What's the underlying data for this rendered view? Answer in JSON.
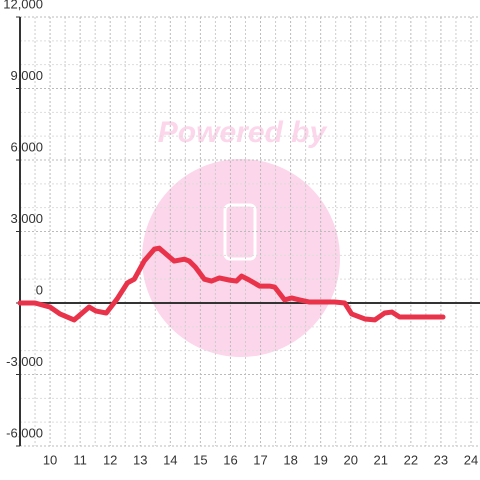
{
  "chart_data": {
    "type": "line",
    "watermark": "Powered by",
    "x": [
      9.0,
      9.5,
      10.0,
      10.33,
      10.8,
      11.3,
      11.53,
      11.87,
      12.23,
      12.57,
      12.8,
      13.13,
      13.47,
      13.63,
      13.97,
      14.13,
      14.47,
      14.63,
      14.83,
      15.13,
      15.37,
      15.63,
      15.97,
      16.2,
      16.37,
      16.63,
      16.97,
      17.3,
      17.47,
      17.8,
      18.03,
      18.3,
      18.63,
      19.47,
      19.8,
      20.03,
      20.47,
      20.8,
      21.13,
      21.37,
      21.63,
      22.3,
      23.07
    ],
    "series": [
      {
        "color": "#e8334a",
        "values": [
          0,
          0,
          -170,
          -460,
          -710,
          -170,
          -340,
          -420,
          170,
          840,
          1000,
          1760,
          2260,
          2300,
          1930,
          1760,
          1840,
          1760,
          1510,
          1000,
          920,
          1050,
          960,
          920,
          1130,
          960,
          710,
          710,
          670,
          130,
          210,
          130,
          40,
          40,
          0,
          -460,
          -670,
          -710,
          -420,
          -380,
          -590,
          -590,
          -590
        ]
      }
    ],
    "xlim": [
      9,
      24.3
    ],
    "ylim": [
      -6000,
      12000
    ],
    "xticks": [
      10,
      11,
      12,
      13,
      14,
      15,
      16,
      17,
      18,
      19,
      20,
      21,
      22,
      23,
      24
    ],
    "minor_xticks": [
      9.5,
      10.5,
      11.5,
      12.5,
      13.5,
      14.5,
      15.5,
      16.5,
      17.5,
      18.5,
      19.5,
      20.5,
      21.5,
      22.5,
      23.5
    ],
    "yticks": [
      {
        "value": -6000,
        "label": "-6,000"
      },
      {
        "value": -3000,
        "label": "-3,000"
      },
      0,
      {
        "value": 3000,
        "label": "3,000"
      },
      {
        "value": 6000,
        "label": "6,000"
      },
      {
        "value": 9000,
        "label": "9,000"
      },
      {
        "value": 12000,
        "label": "12,000"
      }
    ],
    "minor_yticks": [
      -5000,
      -4000,
      -2000,
      -1000,
      1000,
      2000,
      4000,
      5000,
      7000,
      8000,
      10000,
      11000
    ],
    "grid": true
  }
}
